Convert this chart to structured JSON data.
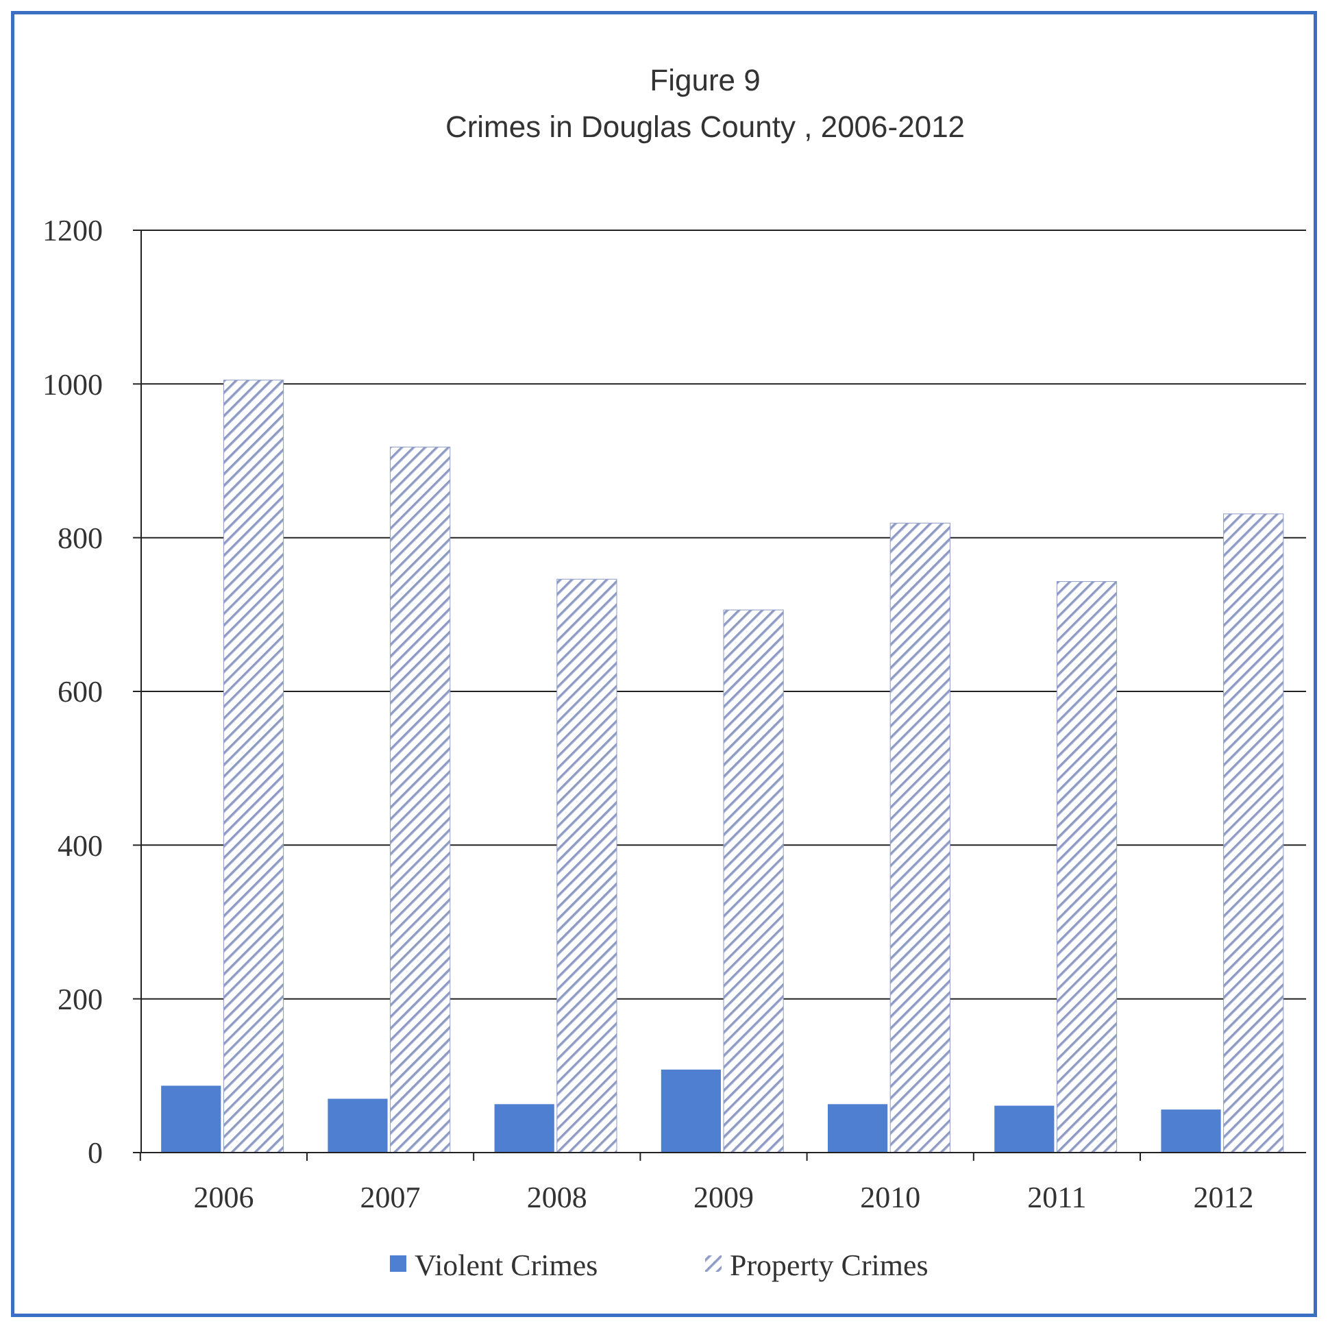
{
  "chart_data": {
    "type": "bar",
    "title": "Figure 9",
    "subtitle": "Crimes in Douglas County , 2006-2012",
    "categories": [
      "2006",
      "2007",
      "2008",
      "2009",
      "2010",
      "2011",
      "2012"
    ],
    "series": [
      {
        "name": "Violent Crimes",
        "color": "#4f7fd0",
        "values": [
          87,
          70,
          63,
          108,
          63,
          61,
          56
        ]
      },
      {
        "name": "Property Crimes",
        "color": "#8d9ac4",
        "values": [
          1005,
          918,
          746,
          706,
          819,
          743,
          831
        ]
      }
    ],
    "ylim": [
      0,
      1200
    ],
    "yticks": [
      0,
      200,
      400,
      600,
      800,
      1000,
      1200
    ],
    "grid": "y",
    "legend": "bottom"
  }
}
